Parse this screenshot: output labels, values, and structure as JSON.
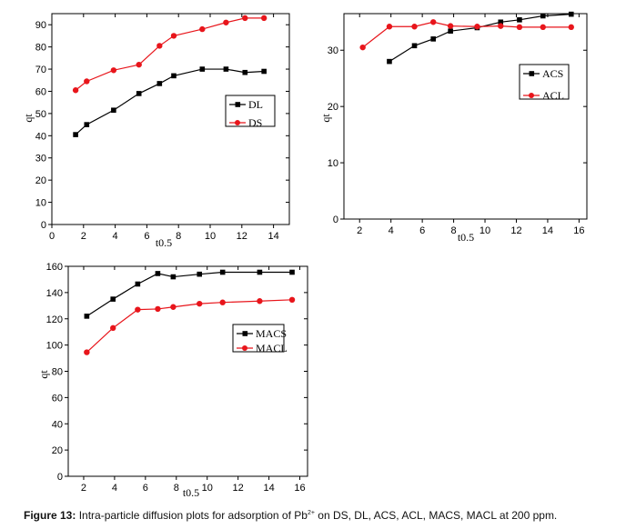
{
  "caption": {
    "label": "Figure 13:",
    "text_before": " Intra-particle diffusion plots for adsorption of Pb",
    "superscript": "2+",
    "text_after": " on DS, DL, ACS, ACL, MACS, MACL at 200 ppm."
  },
  "chart_data": [
    {
      "type": "line",
      "xlabel": "t0.5",
      "ylabel": "qt",
      "xlim": [
        0,
        15
      ],
      "ylim": [
        0,
        95
      ],
      "xticks": [
        0,
        2,
        4,
        6,
        8,
        10,
        12,
        14
      ],
      "yticks": [
        0,
        10,
        20,
        30,
        40,
        50,
        60,
        70,
        80,
        90
      ],
      "legend_position": "center-right",
      "series": [
        {
          "name": "DL",
          "color": "#000000",
          "marker": "square",
          "x": [
            1.5,
            2.2,
            3.9,
            5.5,
            6.8,
            7.7,
            9.5,
            11.0,
            12.2,
            13.4
          ],
          "y": [
            40.5,
            45,
            51.5,
            59,
            63.5,
            67,
            70,
            70,
            68.5,
            69
          ]
        },
        {
          "name": "DS",
          "color": "#e8151b",
          "marker": "circle",
          "x": [
            1.5,
            2.2,
            3.9,
            5.5,
            6.8,
            7.7,
            9.5,
            11.0,
            12.2,
            13.4
          ],
          "y": [
            60.5,
            64.5,
            69.5,
            72,
            80.5,
            85,
            88,
            91,
            93,
            93
          ]
        }
      ]
    },
    {
      "type": "line",
      "xlabel": "t0.5",
      "ylabel": "qt",
      "xlim": [
        1,
        16.5
      ],
      "ylim": [
        0,
        36.5
      ],
      "xticks": [
        2,
        4,
        6,
        8,
        10,
        12,
        14,
        16
      ],
      "yticks": [
        0,
        10,
        20,
        30
      ],
      "legend_position": "center-right",
      "series": [
        {
          "name": "ACS",
          "color": "#000000",
          "marker": "square",
          "x": [
            3.9,
            5.5,
            6.7,
            7.8,
            9.5,
            11.0,
            12.2,
            13.7,
            15.5
          ],
          "y": [
            28,
            30.8,
            32,
            33.4,
            34,
            35,
            35.4,
            36.1,
            36.4
          ]
        },
        {
          "name": "ACL",
          "color": "#e8151b",
          "marker": "circle",
          "x": [
            2.2,
            3.9,
            5.5,
            6.7,
            7.8,
            9.5,
            11.0,
            12.2,
            13.7,
            15.5
          ],
          "y": [
            30.5,
            34.2,
            34.2,
            35,
            34.3,
            34.2,
            34.3,
            34.1,
            34.1,
            34.1
          ]
        }
      ]
    },
    {
      "type": "line",
      "xlabel": "t0.5",
      "ylabel": "qt",
      "xlim": [
        1,
        16.5
      ],
      "ylim": [
        0,
        160
      ],
      "xticks": [
        2,
        4,
        6,
        8,
        10,
        12,
        14,
        16
      ],
      "yticks": [
        0,
        20,
        40,
        60,
        80,
        100,
        120,
        140,
        160
      ],
      "legend_position": "center-right",
      "series": [
        {
          "name": "MACS",
          "color": "#000000",
          "marker": "square",
          "x": [
            2.2,
            3.9,
            5.5,
            6.8,
            7.8,
            9.5,
            11.0,
            13.4,
            15.5
          ],
          "y": [
            122,
            135,
            146.5,
            154.5,
            152,
            154,
            155.5,
            155.5,
            155.5
          ]
        },
        {
          "name": "MACL",
          "color": "#e8151b",
          "marker": "circle",
          "x": [
            2.2,
            3.9,
            5.5,
            6.8,
            7.8,
            9.5,
            11.0,
            13.4,
            15.5
          ],
          "y": [
            94.5,
            113,
            127,
            127.5,
            129,
            131.5,
            132.5,
            133.5,
            134.5
          ]
        }
      ]
    }
  ]
}
